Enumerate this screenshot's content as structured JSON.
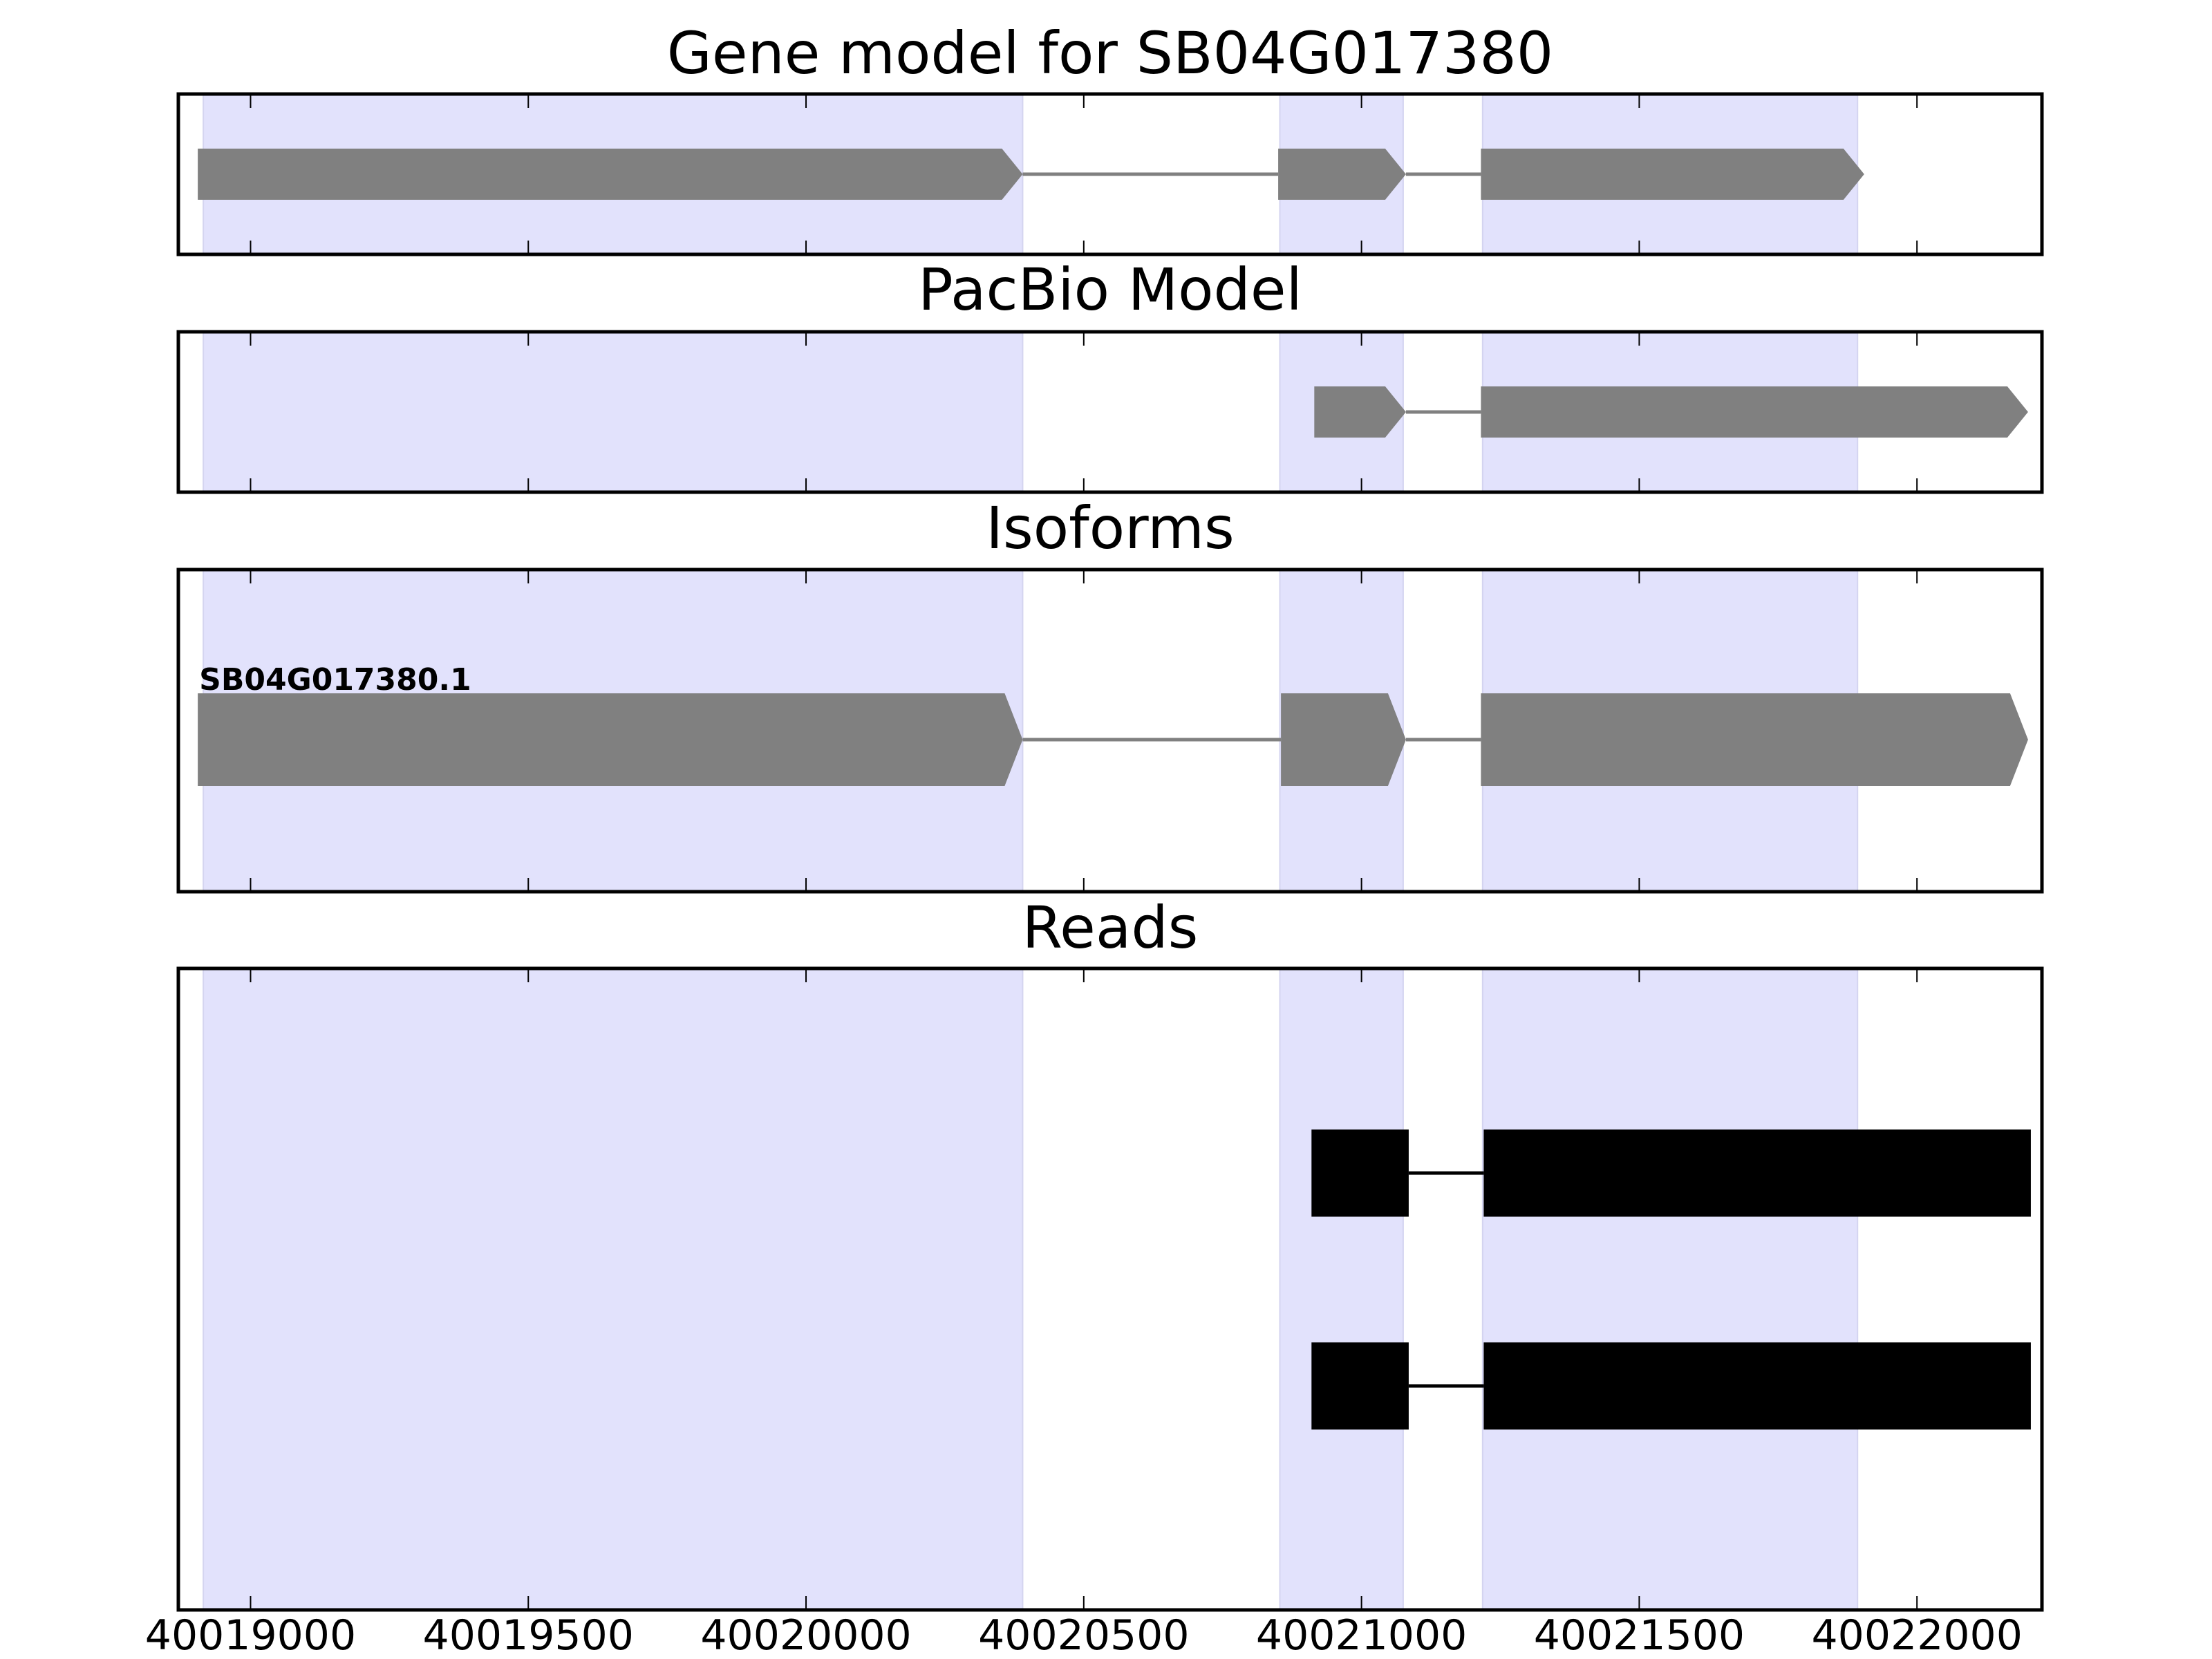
{
  "chart_data": [
    {
      "type": "gene-track",
      "title": "Gene model for SB04G017380",
      "xlim": [
        40018870,
        40022225
      ],
      "features": [
        {
          "kind": "exon",
          "start": 40018905,
          "end": 40020390,
          "strand": "+"
        },
        {
          "kind": "exon",
          "start": 40020850,
          "end": 40021080,
          "strand": "+"
        },
        {
          "kind": "exon",
          "start": 40021215,
          "end": 40021905,
          "strand": "+"
        }
      ]
    },
    {
      "type": "gene-track",
      "title": "PacBio Model",
      "xlim": [
        40018870,
        40022225
      ],
      "features": [
        {
          "kind": "exon",
          "start": 40020915,
          "end": 40021080,
          "strand": "+"
        },
        {
          "kind": "exon",
          "start": 40021215,
          "end": 40022200,
          "strand": "+"
        }
      ]
    },
    {
      "type": "gene-track",
      "title": "Isoforms",
      "xlim": [
        40018870,
        40022225
      ],
      "isoforms": [
        {
          "label": "SB04G017380.1",
          "exons": [
            {
              "start": 40018905,
              "end": 40020390
            },
            {
              "start": 40020855,
              "end": 40021080
            },
            {
              "start": 40021215,
              "end": 40022200
            }
          ]
        }
      ]
    },
    {
      "type": "gene-track",
      "title": "Reads",
      "xlim": [
        40018870,
        40022225
      ],
      "xticks": [
        40019000,
        40019500,
        40020000,
        40020500,
        40021000,
        40021500,
        40022000
      ],
      "reads": [
        {
          "exons": [
            {
              "start": 40020910,
              "end": 40021085
            },
            {
              "start": 40021220,
              "end": 40022205
            }
          ]
        },
        {
          "exons": [
            {
              "start": 40020910,
              "end": 40021085
            },
            {
              "start": 40021220,
              "end": 40022205
            }
          ]
        }
      ]
    }
  ],
  "shaded_regions": [
    {
      "start": 40018915,
      "end": 40020390
    },
    {
      "start": 40020853,
      "end": 40021075
    },
    {
      "start": 40021218,
      "end": 40021893
    }
  ],
  "colors": {
    "shade": "#e2e2fc",
    "model": "#808080",
    "read": "#000000",
    "axis": "#000000"
  }
}
